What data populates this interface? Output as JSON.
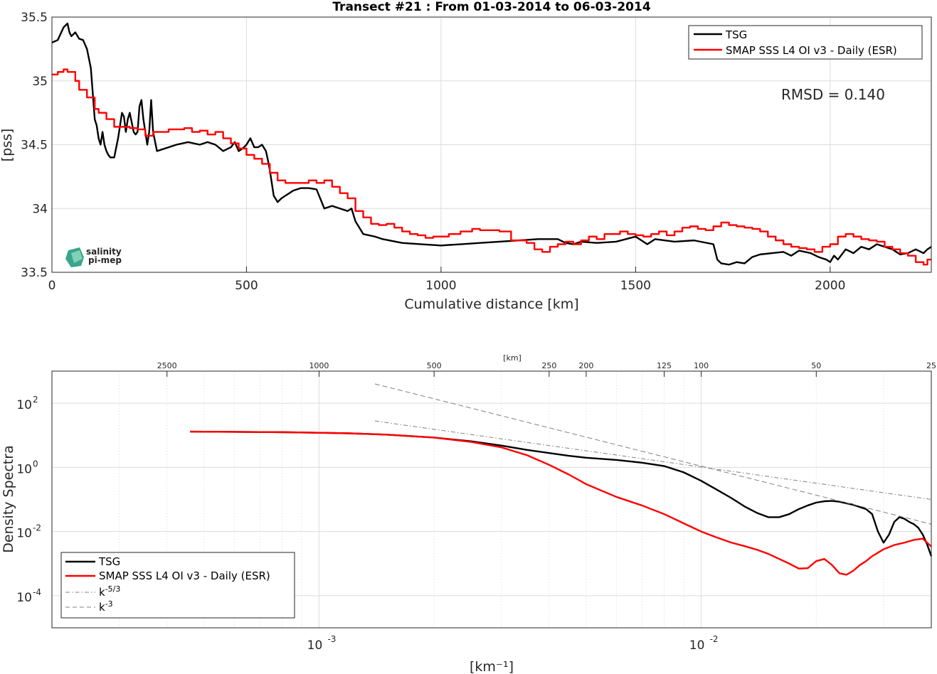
{
  "chart_data": [
    {
      "type": "line",
      "title": "Transect #21 : From 01-03-2014 to 06-03-2014",
      "xlabel": "Cumulative distance [km]",
      "ylabel": "[pss]",
      "xlim": [
        0,
        2260
      ],
      "ylim": [
        33.5,
        35.5
      ],
      "xticks": [
        0,
        500,
        1000,
        1500,
        2000
      ],
      "yticks": [
        33.5,
        34,
        34.5,
        35,
        35.5
      ],
      "grid": true,
      "legend_position": "top-right",
      "annotation": "RMSD = 0.140",
      "logo": {
        "line1": "salinity",
        "line2": "pi-mep"
      },
      "series": [
        {
          "name": "TSG",
          "color": "#000000",
          "x": [
            0,
            15,
            30,
            40,
            45,
            50,
            60,
            70,
            80,
            90,
            100,
            105,
            110,
            115,
            120,
            125,
            130,
            135,
            140,
            145,
            150,
            160,
            170,
            180,
            185,
            190,
            195,
            200,
            210,
            215,
            220,
            225,
            230,
            235,
            240,
            245,
            250,
            255,
            260,
            270,
            280,
            300,
            320,
            350,
            380,
            400,
            420,
            440,
            460,
            470,
            480,
            490,
            500,
            510,
            520,
            530,
            540,
            550,
            555,
            560,
            570,
            580,
            590,
            600,
            610,
            620,
            640,
            660,
            680,
            700,
            720,
            740,
            760,
            770,
            780,
            790,
            800,
            830,
            850,
            900,
            950,
            1000,
            1050,
            1100,
            1150,
            1200,
            1250,
            1300,
            1320,
            1340,
            1360,
            1400,
            1450,
            1500,
            1530,
            1550,
            1600,
            1650,
            1700,
            1710,
            1720,
            1740,
            1760,
            1780,
            1800,
            1820,
            1850,
            1880,
            1900,
            1920,
            1950,
            1970,
            1990,
            2000,
            2010,
            2020,
            2040,
            2060,
            2080,
            2100,
            2120,
            2140,
            2160,
            2180,
            2200,
            2220,
            2240,
            2250,
            2260
          ],
          "y": [
            35.3,
            35.32,
            35.42,
            35.45,
            35.38,
            35.35,
            35.38,
            35.33,
            35.32,
            35.25,
            35.1,
            34.9,
            34.7,
            34.65,
            34.55,
            34.5,
            34.6,
            34.5,
            34.45,
            34.42,
            34.4,
            34.4,
            34.55,
            34.75,
            34.72,
            34.6,
            34.7,
            34.75,
            34.6,
            34.58,
            34.6,
            34.8,
            34.85,
            34.7,
            34.6,
            34.5,
            34.6,
            34.85,
            34.6,
            34.45,
            34.46,
            34.48,
            34.5,
            34.52,
            34.5,
            34.52,
            34.5,
            34.45,
            34.48,
            34.52,
            34.45,
            34.47,
            34.5,
            34.55,
            34.48,
            34.48,
            34.5,
            34.45,
            34.38,
            34.3,
            34.1,
            34.05,
            34.08,
            34.1,
            34.12,
            34.14,
            34.16,
            34.16,
            34.15,
            34.0,
            34.02,
            34.0,
            33.98,
            34.0,
            33.9,
            33.85,
            33.8,
            33.78,
            33.76,
            33.73,
            33.72,
            33.71,
            33.72,
            33.73,
            33.74,
            33.75,
            33.76,
            33.76,
            33.73,
            33.72,
            33.74,
            33.73,
            33.74,
            33.78,
            33.72,
            33.76,
            33.74,
            33.75,
            33.72,
            33.6,
            33.57,
            33.56,
            33.58,
            33.57,
            33.62,
            33.64,
            33.65,
            33.66,
            33.63,
            33.67,
            33.65,
            33.62,
            33.6,
            33.58,
            33.63,
            33.6,
            33.68,
            33.65,
            33.7,
            33.68,
            33.72,
            33.7,
            33.68,
            33.64,
            33.65,
            33.68,
            33.65,
            33.68,
            33.7
          ]
        },
        {
          "name": "SMAP SSS L4 OI v3 - Daily (ESR)",
          "color": "#ff0000",
          "step": true,
          "x": [
            0,
            15,
            30,
            40,
            60,
            70,
            90,
            110,
            120,
            140,
            160,
            180,
            200,
            220,
            240,
            260,
            300,
            320,
            340,
            360,
            380,
            400,
            420,
            440,
            460,
            480,
            500,
            520,
            540,
            560,
            580,
            600,
            620,
            640,
            660,
            680,
            700,
            720,
            740,
            760,
            780,
            800,
            820,
            840,
            860,
            880,
            900,
            920,
            940,
            960,
            980,
            1000,
            1020,
            1050,
            1080,
            1100,
            1150,
            1180,
            1220,
            1240,
            1260,
            1280,
            1300,
            1320,
            1340,
            1360,
            1380,
            1400,
            1420,
            1440,
            1460,
            1480,
            1500,
            1520,
            1540,
            1560,
            1580,
            1600,
            1620,
            1640,
            1660,
            1680,
            1700,
            1720,
            1740,
            1760,
            1780,
            1800,
            1820,
            1840,
            1860,
            1880,
            1900,
            1920,
            1940,
            1960,
            1980,
            2000,
            2020,
            2040,
            2060,
            2080,
            2100,
            2120,
            2140,
            2160,
            2180,
            2200,
            2220,
            2240,
            2250,
            2260
          ],
          "y": [
            35.05,
            35.07,
            35.09,
            35.07,
            35.0,
            34.93,
            34.87,
            34.78,
            34.75,
            34.7,
            34.64,
            34.64,
            34.63,
            34.62,
            34.57,
            34.6,
            34.62,
            34.62,
            34.63,
            34.6,
            34.61,
            34.58,
            34.6,
            34.55,
            34.51,
            34.47,
            34.42,
            34.39,
            34.35,
            34.28,
            34.22,
            34.2,
            34.2,
            34.2,
            34.22,
            34.2,
            34.22,
            34.17,
            34.12,
            34.08,
            33.98,
            33.93,
            33.88,
            33.87,
            33.88,
            33.85,
            33.82,
            33.8,
            33.79,
            33.77,
            33.78,
            33.78,
            33.8,
            33.82,
            33.84,
            33.83,
            33.82,
            33.75,
            33.73,
            33.68,
            33.66,
            33.7,
            33.72,
            33.74,
            33.72,
            33.75,
            33.78,
            33.76,
            33.8,
            33.8,
            33.82,
            33.8,
            33.79,
            33.78,
            33.8,
            33.82,
            33.79,
            33.82,
            33.85,
            33.86,
            33.84,
            33.83,
            33.86,
            33.89,
            33.87,
            33.86,
            33.85,
            33.84,
            33.82,
            33.78,
            33.75,
            33.72,
            33.7,
            33.69,
            33.68,
            33.66,
            33.7,
            33.72,
            33.78,
            33.8,
            33.78,
            33.76,
            33.75,
            33.74,
            33.7,
            33.68,
            33.65,
            33.63,
            33.58,
            33.56,
            33.6,
            33.6
          ]
        }
      ]
    },
    {
      "type": "line",
      "log_x": true,
      "log_y": true,
      "xlabel": "[km⁻¹]",
      "ylabel": "Density Spectra",
      "top_axis_label": "[km]",
      "xlim": [
        0.0002,
        0.04
      ],
      "ylim": [
        1e-05,
        1000
      ],
      "xticks": [
        0.001,
        0.01
      ],
      "xtick_labels": [
        "10",
        "10"
      ],
      "xtick_exponents": [
        "-3",
        "-2"
      ],
      "yticks": [
        0.0001,
        0.01,
        1,
        100
      ],
      "ytick_labels": [
        "10",
        "10",
        "10",
        "10"
      ],
      "ytick_exponents": [
        "-4",
        "-2",
        "0",
        "2"
      ],
      "top_ticks_km": [
        2500,
        1000,
        500,
        250,
        200,
        125,
        100,
        50,
        25
      ],
      "top_tick_labels": [
        "2500",
        "1000",
        "500",
        "250",
        "200",
        "125",
        "100",
        "50",
        "25"
      ],
      "grid": true,
      "legend_position": "bottom-left",
      "series": [
        {
          "name": "TSG",
          "color": "#000000",
          "x": [
            0.00046,
            0.0006,
            0.0008,
            0.001,
            0.0012,
            0.0015,
            0.002,
            0.0025,
            0.003,
            0.0035,
            0.004,
            0.0045,
            0.005,
            0.006,
            0.007,
            0.008,
            0.009,
            0.01,
            0.011,
            0.012,
            0.013,
            0.014,
            0.015,
            0.016,
            0.017,
            0.018,
            0.019,
            0.02,
            0.021,
            0.022,
            0.023,
            0.025,
            0.027,
            0.028,
            0.029,
            0.03,
            0.031,
            0.032,
            0.033,
            0.034,
            0.035,
            0.036,
            0.037,
            0.038,
            0.039,
            0.04
          ],
          "y": [
            13,
            12.8,
            12.5,
            12,
            11.5,
            10.5,
            8.5,
            6.5,
            4.8,
            3.5,
            2.8,
            2.3,
            2.0,
            1.7,
            1.4,
            1.1,
            0.7,
            0.38,
            0.2,
            0.11,
            0.06,
            0.038,
            0.028,
            0.028,
            0.035,
            0.05,
            0.065,
            0.08,
            0.088,
            0.09,
            0.085,
            0.068,
            0.05,
            0.035,
            0.01,
            0.0045,
            0.008,
            0.02,
            0.028,
            0.025,
            0.02,
            0.017,
            0.013,
            0.008,
            0.004,
            0.0017
          ]
        },
        {
          "name": "SMAP SSS L4 OI v3 - Daily (ESR)",
          "color": "#ff0000",
          "x": [
            0.00046,
            0.0006,
            0.0008,
            0.001,
            0.0012,
            0.0015,
            0.002,
            0.0025,
            0.003,
            0.0035,
            0.004,
            0.0045,
            0.005,
            0.006,
            0.007,
            0.008,
            0.009,
            0.01,
            0.011,
            0.012,
            0.013,
            0.014,
            0.015,
            0.016,
            0.017,
            0.018,
            0.019,
            0.02,
            0.021,
            0.022,
            0.023,
            0.024,
            0.025,
            0.026,
            0.027,
            0.028,
            0.03,
            0.032,
            0.034,
            0.036,
            0.038,
            0.04
          ],
          "y": [
            13,
            12.8,
            12.5,
            12,
            11.5,
            10.5,
            8.5,
            6.2,
            4.2,
            2.4,
            1.2,
            0.6,
            0.3,
            0.12,
            0.065,
            0.035,
            0.018,
            0.01,
            0.0065,
            0.0045,
            0.0035,
            0.0027,
            0.002,
            0.0014,
            0.001,
            0.0007,
            0.00072,
            0.0012,
            0.0014,
            0.0009,
            0.0005,
            0.00045,
            0.0006,
            0.0009,
            0.0012,
            0.0017,
            0.0028,
            0.0038,
            0.0045,
            0.0055,
            0.006,
            0.0034
          ]
        },
        {
          "name": "k⁻⁵ᐟ³",
          "legend_text": "k",
          "legend_sup": "-5/3",
          "color": "#808080",
          "dash": "dashdot",
          "x": [
            0.0014,
            0.04
          ],
          "y": [
            28,
            0.1
          ]
        },
        {
          "name": "k⁻³",
          "legend_text": "k",
          "legend_sup": "-3",
          "color": "#808080",
          "dash": "dashed",
          "x": [
            0.0014,
            0.04
          ],
          "y": [
            400,
            0.017
          ]
        }
      ]
    }
  ]
}
